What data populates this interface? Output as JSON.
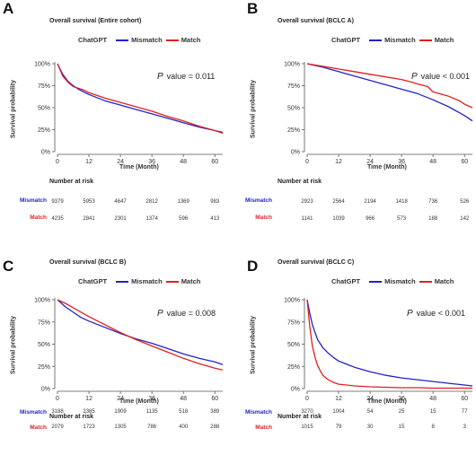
{
  "colors": {
    "mismatch": "#2323c8",
    "match": "#e02020",
    "axis": "#555555"
  },
  "legend_title": "ChatGPT",
  "series_names": [
    "Mismatch",
    "Match"
  ],
  "xlabel": "Time (Month)",
  "ylabel": "Survival probability",
  "risk_header": "Number at risk",
  "chart_data": [
    {
      "type": "line",
      "panel": "A",
      "title": "Overall survival (Entire cohort)",
      "p_label": "P",
      "p_text": "value = 0.011",
      "xlim": [
        0,
        63
      ],
      "ylim": [
        0,
        100
      ],
      "xticks": [
        0,
        12,
        24,
        36,
        48,
        60
      ],
      "yticks": [
        0,
        25,
        50,
        75,
        100
      ],
      "ytick_labels": [
        "0%",
        "25%",
        "50%",
        "75%",
        "100%"
      ],
      "series": [
        {
          "name": "Mismatch",
          "x": [
            0,
            2,
            4,
            6,
            8,
            10,
            12,
            18,
            24,
            30,
            36,
            42,
            48,
            54,
            60,
            63
          ],
          "y": [
            100,
            88,
            80,
            75,
            71,
            68,
            65,
            58,
            53,
            48,
            43,
            38,
            33,
            28,
            24,
            22
          ]
        },
        {
          "name": "Match",
          "x": [
            0,
            2,
            4,
            6,
            8,
            10,
            12,
            18,
            24,
            30,
            36,
            42,
            48,
            54,
            60,
            63
          ],
          "y": [
            100,
            86,
            79,
            74,
            72,
            70,
            67,
            61,
            56,
            51,
            46,
            40,
            35,
            29,
            24,
            21
          ]
        }
      ],
      "risk": {
        "times": [
          0,
          12,
          24,
          36,
          48,
          60
        ],
        "Mismatch": [
          "9379",
          "5953",
          "4647",
          "2812",
          "1369",
          "983"
        ],
        "Match": [
          "4235",
          "2841",
          "2301",
          "1374",
          "596",
          "413"
        ]
      }
    },
    {
      "type": "line",
      "panel": "B",
      "title": "Overall survival (BCLC A)",
      "p_label": "P",
      "p_text": "value < 0.001",
      "xlim": [
        0,
        63
      ],
      "ylim": [
        0,
        100
      ],
      "xticks": [
        0,
        12,
        24,
        36,
        48,
        60
      ],
      "yticks": [
        0,
        25,
        50,
        75,
        100
      ],
      "ytick_labels": [
        "0%",
        "25%",
        "50%",
        "75%",
        "100%"
      ],
      "series": [
        {
          "name": "Mismatch",
          "x": [
            0,
            6,
            12,
            18,
            24,
            30,
            36,
            42,
            48,
            54,
            60,
            63
          ],
          "y": [
            100,
            96,
            91,
            86,
            81,
            76,
            71,
            66,
            59,
            51,
            41,
            35
          ]
        },
        {
          "name": "Match",
          "x": [
            0,
            6,
            12,
            18,
            24,
            30,
            36,
            40,
            42,
            46,
            48,
            54,
            58,
            60,
            63
          ],
          "y": [
            100,
            97,
            94,
            91,
            88,
            85,
            82,
            79,
            77,
            74,
            68,
            63,
            58,
            54,
            50
          ]
        }
      ],
      "risk": {
        "times": [
          0,
          12,
          24,
          36,
          48,
          60
        ],
        "Mismatch": [
          "2923",
          "2564",
          "2194",
          "1418",
          "736",
          "526"
        ],
        "Match": [
          "1141",
          "1039",
          "966",
          "573",
          "188",
          "142"
        ]
      }
    },
    {
      "type": "line",
      "panel": "C",
      "title": "Overall survival (BCLC B)",
      "p_label": "P",
      "p_text": "value = 0.008",
      "xlim": [
        0,
        63
      ],
      "ylim": [
        0,
        100
      ],
      "xticks": [
        0,
        12,
        24,
        36,
        48,
        60
      ],
      "yticks": [
        0,
        25,
        50,
        75,
        100
      ],
      "ytick_labels": [
        "0%",
        "25%",
        "50%",
        "75%",
        "100%"
      ],
      "series": [
        {
          "name": "Mismatch",
          "x": [
            0,
            3,
            6,
            9,
            12,
            18,
            24,
            30,
            36,
            42,
            48,
            54,
            60,
            63
          ],
          "y": [
            100,
            92,
            86,
            80,
            76,
            69,
            62,
            56,
            51,
            45,
            39,
            34,
            30,
            27
          ]
        },
        {
          "name": "Match",
          "x": [
            0,
            3,
            6,
            9,
            12,
            18,
            24,
            30,
            36,
            42,
            48,
            54,
            60,
            63
          ],
          "y": [
            100,
            96,
            91,
            86,
            81,
            72,
            63,
            55,
            48,
            41,
            34,
            28,
            23,
            21
          ]
        }
      ],
      "risk": {
        "times": [
          0,
          12,
          24,
          36,
          48,
          60
        ],
        "Mismatch": [
          "3188",
          "2385",
          "1909",
          "1135",
          "518",
          "389"
        ],
        "Match": [
          "2079",
          "1723",
          "1305",
          "786",
          "400",
          "288"
        ]
      }
    },
    {
      "type": "line",
      "panel": "D",
      "title": "Overall survival (BCLC C)",
      "p_label": "P",
      "p_text": "value < 0.001",
      "xlim": [
        0,
        63
      ],
      "ylim": [
        0,
        100
      ],
      "xticks": [
        0,
        12,
        24,
        36,
        48,
        60
      ],
      "yticks": [
        0,
        25,
        50,
        75,
        100
      ],
      "ytick_labels": [
        "0%",
        "25%",
        "50%",
        "75%",
        "100%"
      ],
      "series": [
        {
          "name": "Mismatch",
          "x": [
            0,
            1,
            2,
            3,
            4,
            6,
            8,
            10,
            12,
            18,
            24,
            30,
            36,
            42,
            48,
            54,
            60,
            63
          ],
          "y": [
            100,
            85,
            72,
            63,
            55,
            46,
            40,
            35,
            31,
            24,
            19,
            15,
            12,
            10,
            8,
            6,
            4,
            3
          ]
        },
        {
          "name": "Match",
          "x": [
            0,
            1,
            2,
            3,
            4,
            5,
            6,
            8,
            10,
            12,
            18,
            24,
            30,
            36,
            42,
            48,
            54,
            60,
            63
          ],
          "y": [
            100,
            70,
            48,
            35,
            26,
            20,
            15,
            10,
            7,
            5,
            3,
            2,
            1.5,
            1,
            1,
            0.5,
            0.5,
            0.5,
            0.5
          ]
        }
      ],
      "risk": {
        "times": [
          0,
          12,
          24,
          36,
          48,
          60
        ],
        "Mismatch": [
          "3270",
          "1004",
          "54",
          "25",
          "15",
          "77"
        ],
        "Match": [
          "1015",
          "79",
          "30",
          "15",
          "8",
          "3"
        ]
      }
    }
  ]
}
